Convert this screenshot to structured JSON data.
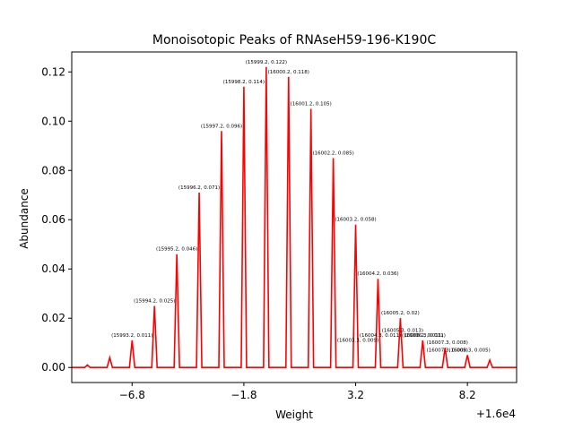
{
  "chart_data": {
    "type": "line",
    "title": "Monoisotopic Peaks of RNAseH59-196-K190C",
    "xlabel": "Weight",
    "ylabel": "Abundance",
    "x_offset_label": "+1.6e4",
    "xlim": [
      15990.5,
      16010.4
    ],
    "ylim": [
      -0.0061,
      0.1281
    ],
    "x_ticks": [
      15993.2,
      15998.2,
      16003.2,
      16008.2
    ],
    "x_tick_labels": [
      "−6.8",
      "−1.8",
      "3.2",
      "8.2"
    ],
    "y_ticks": [
      0.0,
      0.02,
      0.04,
      0.06,
      0.08,
      0.1,
      0.12
    ],
    "y_tick_labels": [
      "0.00",
      "0.02",
      "0.04",
      "0.06",
      "0.08",
      "0.10",
      "0.12"
    ],
    "grid": false,
    "series": [
      {
        "color": "#ff0000",
        "x": [
          15991.2,
          15992.2,
          15993.2,
          15994.2,
          15995.2,
          15996.2,
          15997.2,
          15998.2,
          15999.2,
          16000.2,
          16001.2,
          16002.2,
          16003.2,
          16004.2,
          16005.2,
          16006.2,
          16007.2,
          16008.2,
          16009.2
        ],
        "y": [
          0.001,
          0.004,
          0.011,
          0.025,
          0.046,
          0.071,
          0.096,
          0.114,
          0.122,
          0.118,
          0.105,
          0.085,
          0.058,
          0.036,
          0.02,
          0.011,
          0.008,
          0.005,
          0.003
        ]
      }
    ],
    "annotations": [
      {
        "text": "(15993.2, 0.011)",
        "x": 15993.2,
        "y": 0.011
      },
      {
        "text": "(15994.2, 0.025)",
        "x": 15994.2,
        "y": 0.025
      },
      {
        "text": "(15995.2, 0.046)",
        "x": 15995.2,
        "y": 0.046
      },
      {
        "text": "(15996.2, 0.071)",
        "x": 15996.2,
        "y": 0.071
      },
      {
        "text": "(15997.2, 0.096)",
        "x": 15997.2,
        "y": 0.096
      },
      {
        "text": "(15998.2, 0.114)",
        "x": 15998.2,
        "y": 0.114
      },
      {
        "text": "(15999.2, 0.122)",
        "x": 15999.2,
        "y": 0.122
      },
      {
        "text": "(16000.2, 0.118)",
        "x": 16000.2,
        "y": 0.118
      },
      {
        "text": "(16001.2, 0.105)",
        "x": 16001.2,
        "y": 0.105
      },
      {
        "text": "(16002.2, 0.085)",
        "x": 16002.2,
        "y": 0.085
      },
      {
        "text": "(16003.2, 0.058)",
        "x": 16003.2,
        "y": 0.058
      },
      {
        "text": "(16004.2, 0.036)",
        "x": 16004.2,
        "y": 0.036
      },
      {
        "text": "(16005.2, 0.02)",
        "x": 16005.2,
        "y": 0.02
      },
      {
        "text": "(16005.3, 0.013)",
        "x": 16005.3,
        "y": 0.013
      },
      {
        "text": "(16003.3, 0.009)",
        "x": 16003.3,
        "y": 0.009
      },
      {
        "text": "(16004.3, 0.011)",
        "x": 16004.3,
        "y": 0.011
      },
      {
        "text": "(16006.3, 0.011)",
        "x": 16006.3,
        "y": 0.011
      },
      {
        "text": "(16006.2, 0.011)",
        "x": 16006.2,
        "y": 0.011
      },
      {
        "text": "(16007.3, 0.008)",
        "x": 16007.3,
        "y": 0.008
      },
      {
        "text": "(16007.3, 0.005)",
        "x": 16007.3,
        "y": 0.005
      },
      {
        "text": "(16008.3, 0.005)",
        "x": 16008.3,
        "y": 0.005
      }
    ]
  }
}
